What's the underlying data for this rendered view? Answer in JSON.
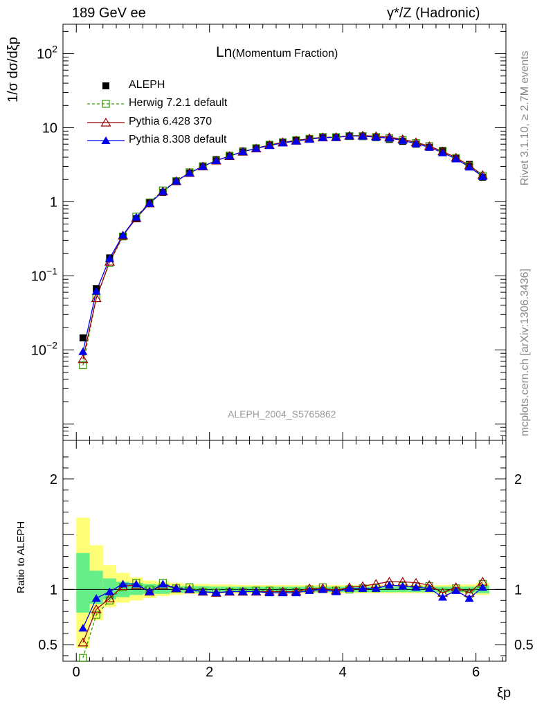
{
  "header": {
    "left": "189 GeV ee",
    "right": "γ*/Z (Hadronic)"
  },
  "side_labels": {
    "rivet": "Rivet 3.1.10, ≥ 2.7M events",
    "mcplots": "mcplots.cern.ch [arXiv:1306.3436]"
  },
  "chart_data": {
    "type": "line",
    "title": "Ln(Momentum Fraction)",
    "title_main": "Ln",
    "title_sub": "(Momentum Fraction)",
    "analysis_id": "ALEPH_2004_S5765862",
    "xlabel": "ξp",
    "ylabel": "1/σ dσ/dξp",
    "ratio_ylabel": "Ratio to ALEPH",
    "xlim": [
      -0.2,
      6.45
    ],
    "ylim_log": [
      0.0006,
      250
    ],
    "ratio_ylim": [
      0.35,
      2.35
    ],
    "x_ticks": [
      "0",
      "2",
      "4",
      "6"
    ],
    "y_ticks": [
      "10^-2",
      "10^-1",
      "1",
      "10",
      "10^2"
    ],
    "ratio_ticks": [
      "0.5",
      "1",
      "2"
    ],
    "x": [
      0.1,
      0.3,
      0.5,
      0.7,
      0.9,
      1.1,
      1.3,
      1.5,
      1.7,
      1.9,
      2.1,
      2.3,
      2.5,
      2.7,
      2.9,
      3.1,
      3.3,
      3.5,
      3.7,
      3.9,
      4.1,
      4.3,
      4.5,
      4.7,
      4.9,
      5.1,
      5.3,
      5.5,
      5.7,
      5.9,
      6.1
    ],
    "series": [
      {
        "name": "ALEPH",
        "color": "#000000",
        "marker": "filled-square",
        "values": [
          0.0145,
          0.067,
          0.175,
          0.34,
          0.59,
          0.97,
          1.34,
          1.88,
          2.45,
          3.05,
          3.72,
          4.25,
          4.85,
          5.35,
          5.95,
          6.45,
          6.85,
          7.1,
          7.35,
          7.55,
          7.65,
          7.6,
          7.35,
          6.95,
          6.55,
          6.0,
          5.45,
          4.95,
          3.85,
          3.2,
          2.15
        ]
      },
      {
        "name": "Herwig 7.2.1 default",
        "color": "#339900",
        "marker": "open-square",
        "dashed": true,
        "values": [
          0.0062,
          0.05,
          0.15,
          0.34,
          0.63,
          0.98,
          1.42,
          1.9,
          2.5,
          3.0,
          3.6,
          4.15,
          4.75,
          5.3,
          5.9,
          6.35,
          6.8,
          7.1,
          7.5,
          7.45,
          7.7,
          7.7,
          7.5,
          7.2,
          6.8,
          6.2,
          5.65,
          4.8,
          3.9,
          3.05,
          2.25
        ]
      },
      {
        "name": "Pythia 6.428 370",
        "color": "#990000",
        "marker": "open-triangle",
        "values": [
          0.0075,
          0.05,
          0.155,
          0.35,
          0.6,
          0.95,
          1.38,
          1.9,
          2.45,
          3.0,
          3.6,
          4.15,
          4.75,
          5.25,
          5.85,
          6.35,
          6.7,
          7.15,
          7.4,
          7.45,
          7.8,
          7.85,
          7.7,
          7.45,
          7.0,
          6.35,
          5.65,
          4.8,
          3.95,
          3.1,
          2.3
        ]
      },
      {
        "name": "Pythia 8.308 default",
        "color": "#0000ee",
        "marker": "filled-triangle",
        "values": [
          0.0095,
          0.062,
          0.172,
          0.355,
          0.62,
          0.95,
          1.38,
          1.9,
          2.45,
          3.0,
          3.6,
          4.15,
          4.75,
          5.25,
          5.75,
          6.25,
          6.6,
          7.0,
          7.35,
          7.4,
          7.75,
          7.7,
          7.45,
          7.25,
          6.75,
          6.1,
          5.45,
          4.6,
          3.8,
          2.95,
          2.2
        ]
      }
    ],
    "ratio_series": [
      {
        "name": "Herwig 7.2.1 default",
        "values": [
          0.38,
          0.77,
          0.9,
          1.02,
          1.06,
          1.0,
          1.06,
          1.01,
          1.02,
          0.98,
          0.97,
          0.98,
          0.98,
          0.99,
          0.99,
          0.98,
          0.98,
          1.0,
          1.02,
          0.99,
          1.0,
          1.01,
          1.01,
          1.04,
          1.03,
          1.03,
          1.03,
          0.97,
          1.01,
          0.96,
          1.05
        ]
      },
      {
        "name": "Pythia 6.428 370",
        "values": [
          0.52,
          0.82,
          0.92,
          1.03,
          1.04,
          0.98,
          1.04,
          1.01,
          1.0,
          0.98,
          0.97,
          0.98,
          0.98,
          0.98,
          0.98,
          0.98,
          0.98,
          1.01,
          1.01,
          0.99,
          1.02,
          1.03,
          1.05,
          1.07,
          1.07,
          1.06,
          1.04,
          0.97,
          1.02,
          0.97,
          1.07
        ]
      },
      {
        "name": "Pythia 8.308 default",
        "values": [
          0.65,
          0.92,
          0.98,
          1.05,
          1.05,
          0.98,
          1.05,
          1.01,
          1.0,
          0.98,
          0.97,
          0.98,
          0.98,
          0.98,
          0.97,
          0.97,
          0.97,
          0.99,
          1.0,
          0.98,
          1.01,
          1.01,
          1.01,
          1.04,
          1.03,
          1.02,
          1.01,
          0.93,
          0.99,
          0.92,
          1.02
        ]
      }
    ],
    "bands": {
      "edges": [
        0.0,
        0.2,
        0.4,
        0.6,
        0.8,
        1.0,
        1.2,
        1.4,
        1.6,
        1.8,
        2.0,
        2.2,
        2.4,
        2.6,
        2.8,
        3.0,
        3.2,
        3.4,
        3.6,
        3.8,
        4.0,
        4.2,
        4.4,
        4.6,
        4.8,
        5.0,
        5.2,
        5.4,
        5.6,
        5.8,
        6.0,
        6.2
      ],
      "stat_color": "#66ee88",
      "total_color": "#ffff77",
      "stat_low": [
        0.79,
        0.87,
        0.91,
        0.93,
        0.95,
        0.96,
        0.96,
        0.97,
        0.97,
        0.97,
        0.975,
        0.975,
        0.975,
        0.975,
        0.975,
        0.975,
        0.975,
        0.975,
        0.975,
        0.975,
        0.975,
        0.975,
        0.975,
        0.975,
        0.975,
        0.975,
        0.975,
        0.975,
        0.975,
        0.975,
        0.965
      ],
      "stat_high": [
        1.33,
        1.17,
        1.1,
        1.07,
        1.06,
        1.05,
        1.04,
        1.03,
        1.03,
        1.03,
        1.025,
        1.025,
        1.025,
        1.025,
        1.025,
        1.025,
        1.025,
        1.025,
        1.025,
        1.025,
        1.025,
        1.025,
        1.025,
        1.025,
        1.025,
        1.025,
        1.025,
        1.025,
        1.025,
        1.025,
        1.035
      ],
      "total_low": [
        0.47,
        0.72,
        0.84,
        0.88,
        0.9,
        0.92,
        0.94,
        0.95,
        0.96,
        0.96,
        0.965,
        0.965,
        0.965,
        0.965,
        0.965,
        0.965,
        0.965,
        0.965,
        0.965,
        0.965,
        0.965,
        0.965,
        0.965,
        0.965,
        0.965,
        0.965,
        0.965,
        0.965,
        0.965,
        0.965,
        0.95
      ],
      "total_high": [
        1.65,
        1.4,
        1.22,
        1.15,
        1.11,
        1.08,
        1.07,
        1.06,
        1.05,
        1.05,
        1.045,
        1.045,
        1.04,
        1.04,
        1.04,
        1.04,
        1.04,
        1.04,
        1.04,
        1.04,
        1.04,
        1.04,
        1.04,
        1.04,
        1.04,
        1.04,
        1.04,
        1.04,
        1.045,
        1.045,
        1.06
      ]
    }
  }
}
